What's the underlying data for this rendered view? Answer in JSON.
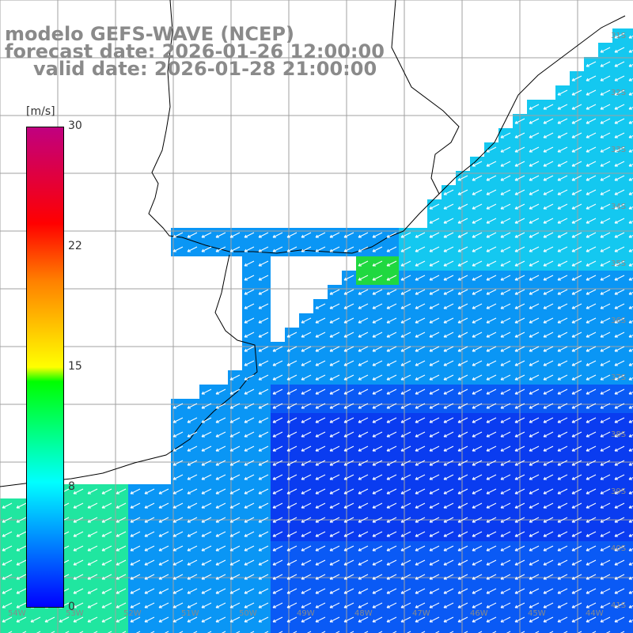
{
  "title": {
    "line1": "modelo GEFS-WAVE (NCEP)",
    "line2": "forecast date: 2026-01-26 12:00:00",
    "line3": "valid date: 2026-01-28 21:00:00"
  },
  "colorbar": {
    "unit": "[m/s]",
    "ticks": [
      "30",
      "22",
      "15",
      "8",
      "0"
    ],
    "tick_values": [
      30,
      22,
      15,
      8,
      0
    ],
    "max": 30,
    "colors": [
      "#0000ff",
      "#0080ff",
      "#00ffff",
      "#00ff00",
      "#ffff00",
      "#ff8000",
      "#ff0000",
      "#c00080"
    ]
  },
  "lat_labels": [
    "31S",
    "32S",
    "33S",
    "34S",
    "35S",
    "36S",
    "37S",
    "38S",
    "39S",
    "40S",
    "41S"
  ],
  "lon_labels": [
    "54W",
    "53W",
    "52W",
    "51W",
    "50W",
    "49W",
    "48W",
    "47W",
    "46W",
    "45W",
    "44W"
  ],
  "colors": {
    "land": "#ffffff",
    "grid": "#a0a0a0",
    "arrow": "#ffffff",
    "text": "#8a8a8a"
  }
}
